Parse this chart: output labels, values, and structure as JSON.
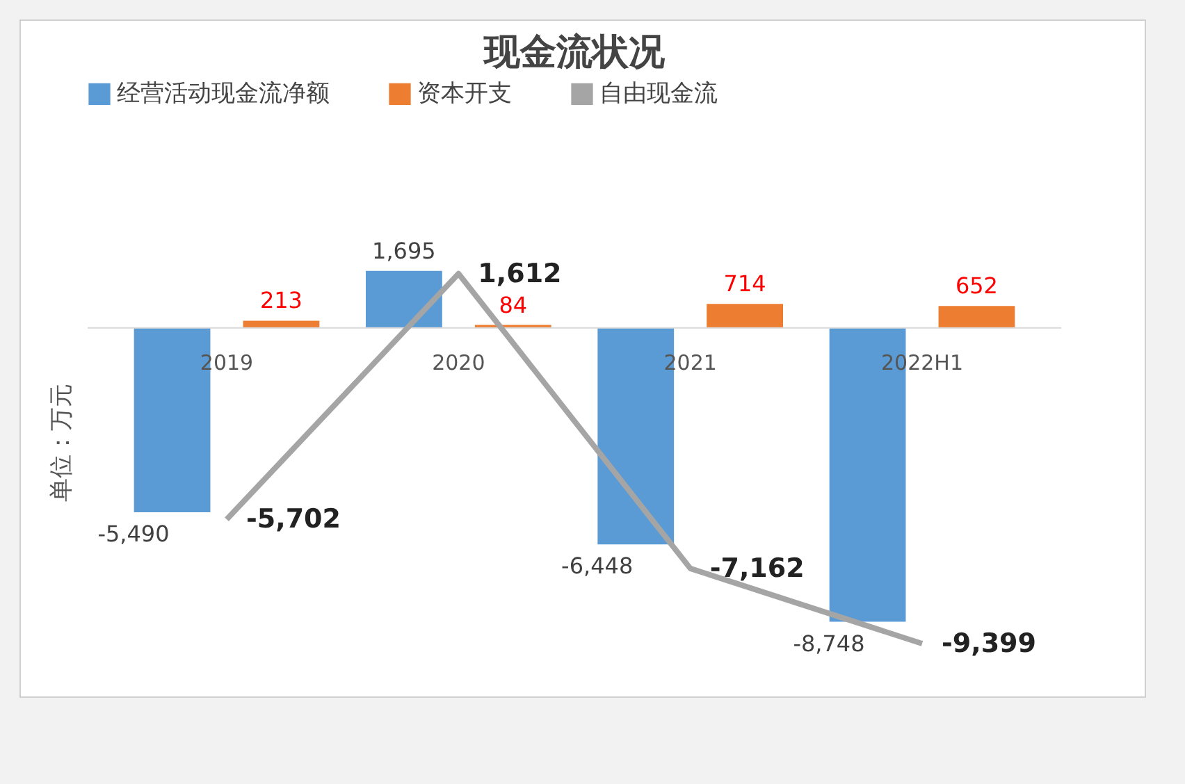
{
  "chart_data": {
    "type": "bar",
    "title": "现金流状况",
    "ylabel": "单位：万元",
    "categories": [
      "2019",
      "2020",
      "2021",
      "2022H1"
    ],
    "series": [
      {
        "name": "经营活动现金流净额",
        "color": "#5b9bd5",
        "values": [
          -5490,
          1695,
          -6448,
          -8748
        ],
        "value_labels": [
          "-5,490",
          "1,695",
          "-6,448",
          "-8,748"
        ]
      },
      {
        "name": "资本开支",
        "color": "#ed7d31",
        "values": [
          213,
          84,
          714,
          652
        ]
      },
      {
        "name": "自由现金流",
        "type": "line",
        "color": "#a5a5a5",
        "values": [
          -5702,
          1612,
          -7162,
          -9399
        ],
        "value_labels": [
          "-5,702",
          "1,612",
          "-7,162",
          "-9,399"
        ]
      }
    ],
    "data_labels": true,
    "legend": "top",
    "marker": "none",
    "grid": false
  }
}
